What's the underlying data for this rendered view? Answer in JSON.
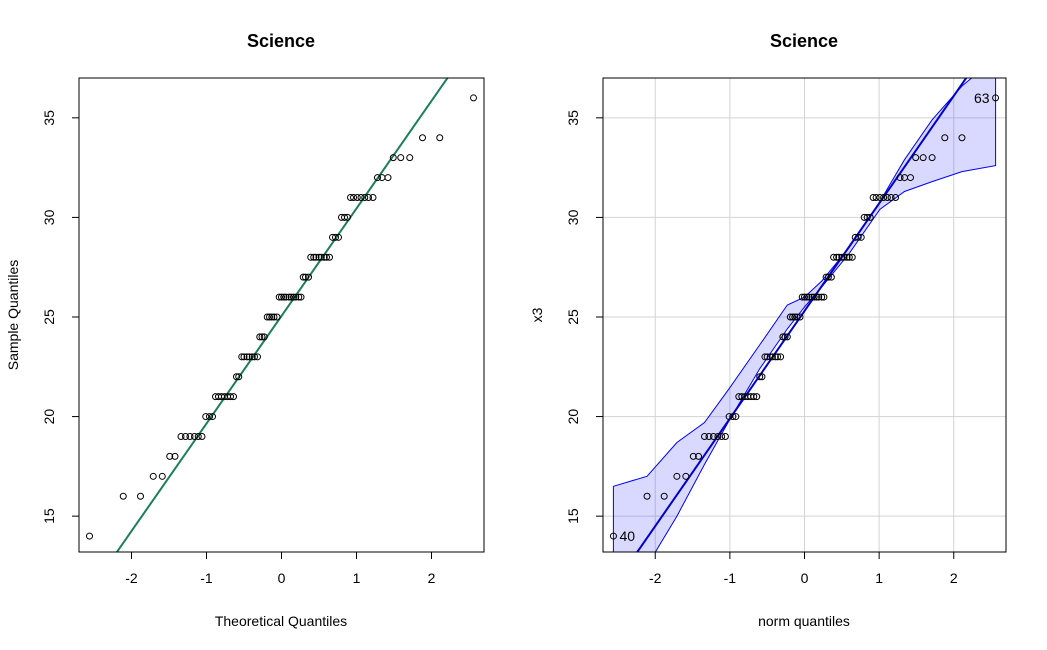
{
  "chart_data": [
    {
      "type": "scatter",
      "subtype": "qq-plot",
      "title": "Science",
      "xlabel": "Theoretical Quantiles",
      "ylabel": "Sample Quantiles",
      "xlim": [
        -2.7,
        2.7
      ],
      "ylim": [
        13.2,
        37.0
      ],
      "xticks": [
        -2,
        -1,
        0,
        1,
        2
      ],
      "yticks": [
        15,
        20,
        25,
        30,
        35
      ],
      "grid": false,
      "points": {
        "x": [
          -2.56,
          -2.11,
          -1.88,
          -1.71,
          -1.59,
          -1.49,
          -1.42,
          -1.34,
          -1.28,
          -1.22,
          -1.16,
          -1.11,
          -1.06,
          -1.01,
          -0.96,
          -0.92,
          -0.88,
          -0.84,
          -0.8,
          -0.76,
          -0.72,
          -0.68,
          -0.64,
          -0.6,
          -0.57,
          -0.53,
          -0.5,
          -0.46,
          -0.43,
          -0.39,
          -0.36,
          -0.32,
          -0.29,
          -0.26,
          -0.23,
          -0.19,
          -0.16,
          -0.13,
          -0.1,
          -0.06,
          -0.03,
          0.0,
          0.03,
          0.06,
          0.1,
          0.13,
          0.16,
          0.19,
          0.23,
          0.26,
          0.29,
          0.32,
          0.36,
          0.39,
          0.43,
          0.46,
          0.5,
          0.53,
          0.57,
          0.6,
          0.64,
          0.68,
          0.72,
          0.76,
          0.8,
          0.84,
          0.88,
          0.92,
          0.96,
          1.01,
          1.06,
          1.11,
          1.16,
          1.22,
          1.28,
          1.34,
          1.42,
          1.49,
          1.59,
          1.71,
          1.88,
          2.11,
          2.56
        ],
        "y": [
          14,
          16,
          16,
          17,
          17,
          18,
          18,
          19,
          19,
          19,
          19,
          19,
          19,
          20,
          20,
          20,
          21,
          21,
          21,
          21,
          21,
          21,
          21,
          22,
          22,
          23,
          23,
          23,
          23,
          23,
          23,
          23,
          24,
          24,
          24,
          25,
          25,
          25,
          25,
          25,
          26,
          26,
          26,
          26,
          26,
          26,
          26,
          26,
          26,
          26,
          27,
          27,
          27,
          28,
          28,
          28,
          28,
          28,
          28,
          28,
          28,
          29,
          29,
          29,
          30,
          30,
          30,
          31,
          31,
          31,
          31,
          31,
          31,
          31,
          32,
          32,
          32,
          33,
          33,
          33,
          34,
          34,
          36
        ]
      },
      "reference_line": {
        "color": "#1a7f5a",
        "intercept": 25.05,
        "slope": 5.4
      }
    },
    {
      "type": "scatter",
      "subtype": "qq-plot-with-confidence-envelope",
      "title": "Science",
      "xlabel": "norm quantiles",
      "ylabel": "x3",
      "xlim": [
        -2.7,
        2.7
      ],
      "ylim": [
        13.2,
        37.0
      ],
      "xticks": [
        -2,
        -1,
        0,
        1,
        2
      ],
      "yticks": [
        15,
        20,
        25,
        30,
        35
      ],
      "grid": true,
      "points": {
        "x": [
          -2.56,
          -2.11,
          -1.88,
          -1.71,
          -1.59,
          -1.49,
          -1.42,
          -1.34,
          -1.28,
          -1.22,
          -1.16,
          -1.11,
          -1.06,
          -1.01,
          -0.96,
          -0.92,
          -0.88,
          -0.84,
          -0.8,
          -0.76,
          -0.72,
          -0.68,
          -0.64,
          -0.6,
          -0.57,
          -0.53,
          -0.5,
          -0.46,
          -0.43,
          -0.39,
          -0.36,
          -0.32,
          -0.29,
          -0.26,
          -0.23,
          -0.19,
          -0.16,
          -0.13,
          -0.1,
          -0.06,
          -0.03,
          0.0,
          0.03,
          0.06,
          0.1,
          0.13,
          0.16,
          0.19,
          0.23,
          0.26,
          0.29,
          0.32,
          0.36,
          0.39,
          0.43,
          0.46,
          0.5,
          0.53,
          0.57,
          0.6,
          0.64,
          0.68,
          0.72,
          0.76,
          0.8,
          0.84,
          0.88,
          0.92,
          0.96,
          1.01,
          1.06,
          1.11,
          1.16,
          1.22,
          1.28,
          1.34,
          1.42,
          1.49,
          1.59,
          1.71,
          1.88,
          2.11,
          2.56
        ],
        "y": [
          14,
          16,
          16,
          17,
          17,
          18,
          18,
          19,
          19,
          19,
          19,
          19,
          19,
          20,
          20,
          20,
          21,
          21,
          21,
          21,
          21,
          21,
          21,
          22,
          22,
          23,
          23,
          23,
          23,
          23,
          23,
          23,
          24,
          24,
          24,
          25,
          25,
          25,
          25,
          25,
          26,
          26,
          26,
          26,
          26,
          26,
          26,
          26,
          26,
          26,
          27,
          27,
          27,
          28,
          28,
          28,
          28,
          28,
          28,
          28,
          28,
          29,
          29,
          29,
          30,
          30,
          30,
          31,
          31,
          31,
          31,
          31,
          31,
          31,
          32,
          32,
          32,
          33,
          33,
          33,
          34,
          34,
          36
        ]
      },
      "reference_line": {
        "color": "#0000cc",
        "intercept": 25.3,
        "slope": 5.4
      },
      "envelope": {
        "color": "#0000ff",
        "x": [
          -2.56,
          -2.11,
          -1.71,
          -1.34,
          -1.01,
          -0.6,
          -0.23,
          0.0,
          0.23,
          0.6,
          1.01,
          1.34,
          1.71,
          2.11,
          2.56
        ],
        "lower": [
          9.0,
          12.5,
          15.0,
          17.6,
          19.8,
          22.4,
          24.4,
          25.5,
          26.5,
          28.2,
          30.4,
          31.3,
          31.8,
          32.3,
          32.6
        ],
        "upper": [
          16.5,
          17.0,
          18.7,
          19.7,
          21.4,
          23.6,
          25.6,
          26.0,
          26.8,
          28.5,
          30.8,
          32.9,
          34.9,
          36.6,
          38.0
        ]
      },
      "point_labels": [
        {
          "text": "40",
          "x": -2.56,
          "y": 14
        },
        {
          "text": "63",
          "x": 2.56,
          "y": 36
        }
      ]
    }
  ]
}
